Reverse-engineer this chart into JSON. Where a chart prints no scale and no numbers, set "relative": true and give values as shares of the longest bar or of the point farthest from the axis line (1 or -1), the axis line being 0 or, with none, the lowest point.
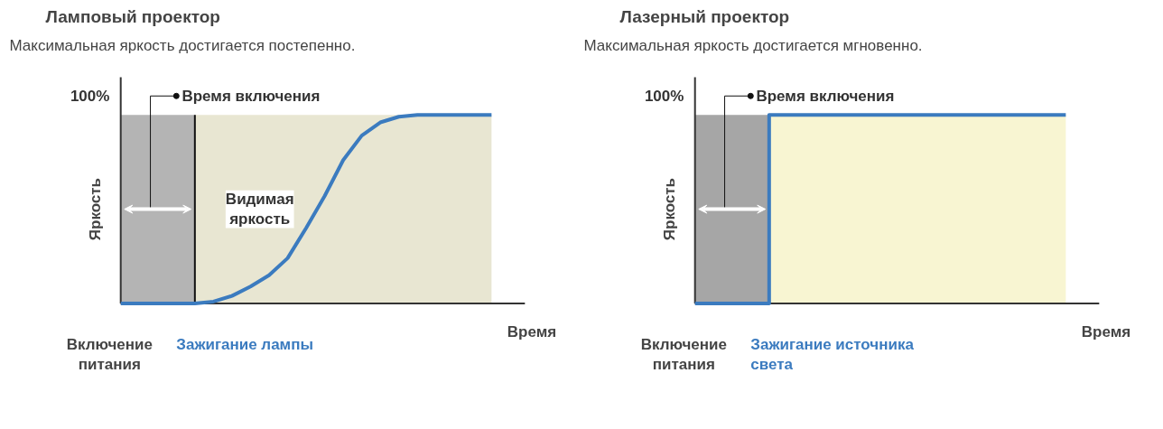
{
  "chart_data": [
    {
      "type": "line",
      "title": "Ламповый проектор",
      "subtitle": "Максимальная яркость достигается постепенно.",
      "xlabel": "Время",
      "ylabel": "Яркость",
      "relative": true,
      "categories": [
        null,
        null,
        null,
        null,
        null,
        null,
        null,
        null,
        null,
        null,
        null,
        null,
        null,
        null,
        null,
        null,
        null,
        null,
        null,
        null,
        null
      ],
      "series": [
        {
          "color": "#3b7bbf",
          "values": [
            0,
            0,
            0,
            0,
            0,
            0.01,
            0.04,
            0.09,
            0.15,
            0.24,
            0.4,
            0.57,
            0.76,
            0.89,
            0.96,
            0.99,
            1,
            1,
            1,
            1,
            1
          ]
        }
      ],
      "annotations": [
        "100%",
        "Время включения",
        "Видимая яркость",
        "Включение питания",
        "Зажигание лампы"
      ]
    },
    {
      "type": "step",
      "title": "Лазерный проектор",
      "subtitle": "Максимальная яркость достигается мгновенно.",
      "xlabel": "Время",
      "ylabel": "Яркость",
      "relative": true,
      "categories": [
        null,
        null,
        null,
        null,
        null,
        null,
        null,
        null,
        null,
        null,
        null,
        null,
        null,
        null,
        null,
        null,
        null,
        null,
        null,
        null,
        null
      ],
      "series": [
        {
          "color": "#3b7bbf",
          "values": [
            0,
            0,
            0,
            0,
            1,
            1,
            1,
            1,
            1,
            1,
            1,
            1,
            1,
            1,
            1,
            1,
            1,
            1,
            1,
            1,
            1
          ]
        }
      ],
      "annotations": [
        "100%",
        "Время включения",
        null,
        "Включение питания",
        "Зажигание источника света"
      ]
    }
  ]
}
